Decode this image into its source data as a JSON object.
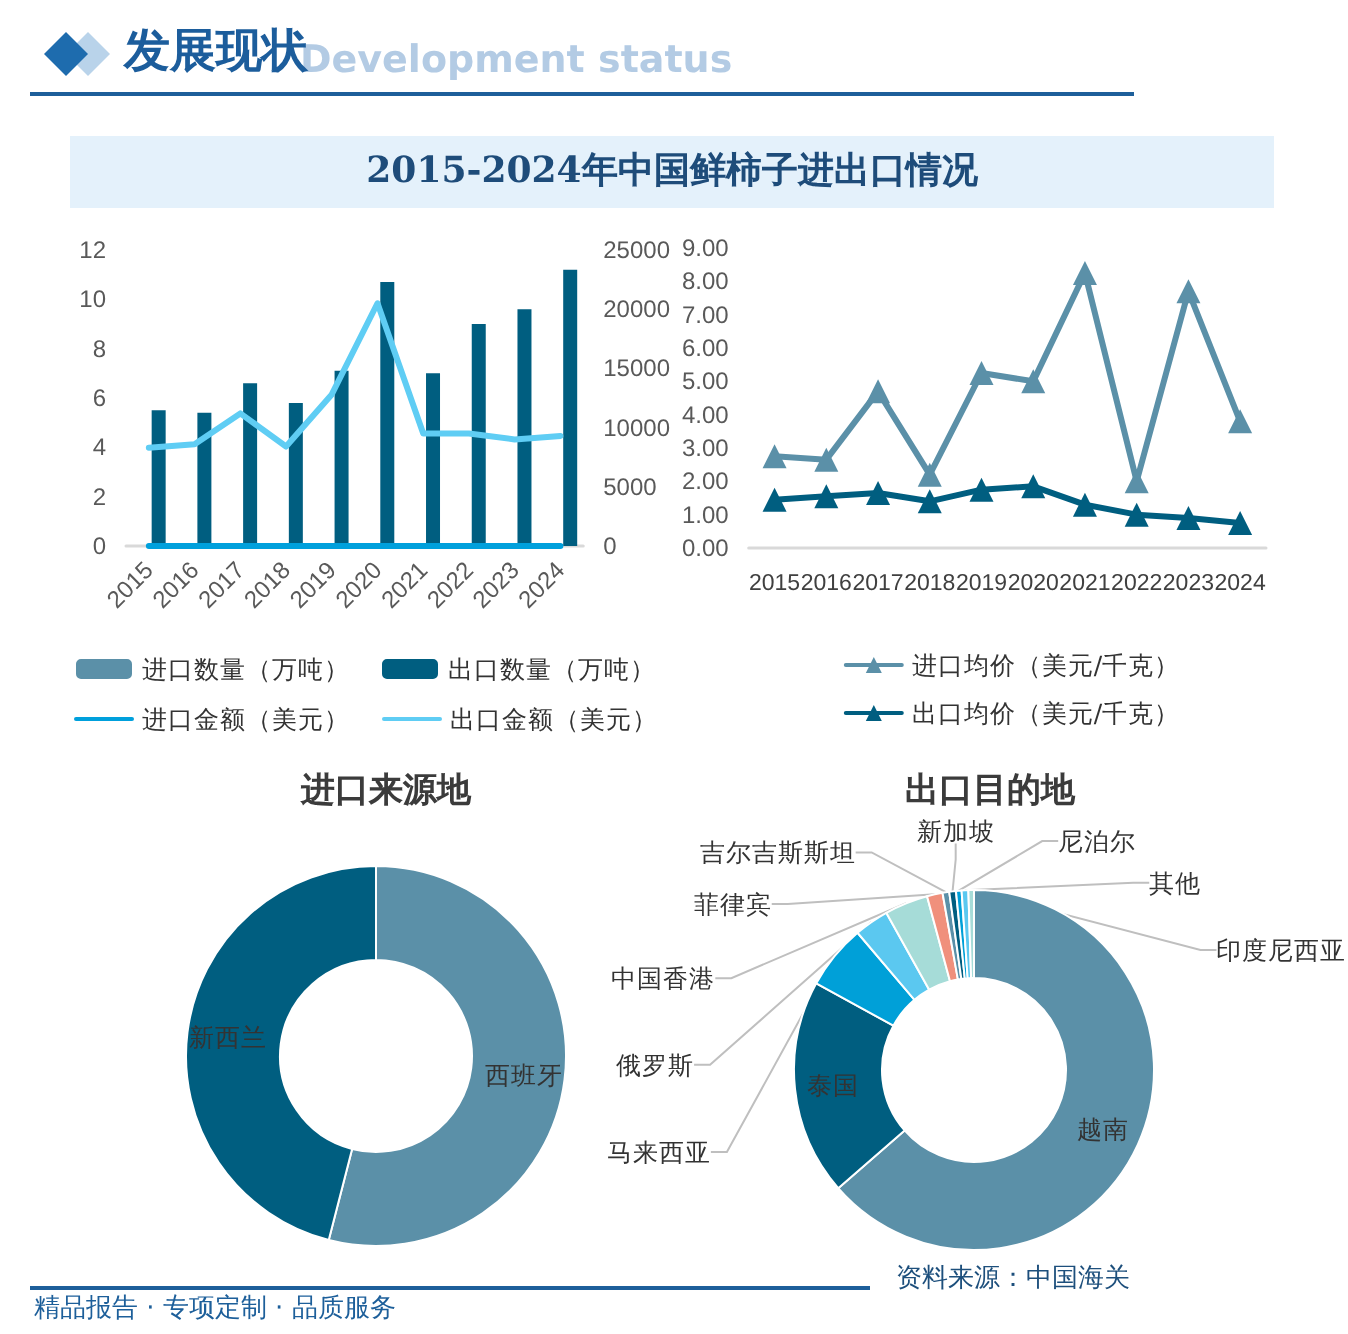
{
  "chart_data": [
    {
      "type": "other",
      "title": "发展现状",
      "subtitle": "2015-2024年中国鲜柿子进出口情况",
      "annotations": [
        "Development status",
        "精品报告 · 专项定制 · 品质服务",
        "资料来源：中国海关"
      ]
    },
    {
      "type": "bar",
      "categories": [
        "2015",
        "2016",
        "2017",
        "2018",
        "2019",
        "2020",
        "2021",
        "2022",
        "2023",
        "2024"
      ],
      "series": [
        {
          "name": "进口数量（万吨）",
          "type": "bar",
          "color": "#5b90a8",
          "values": [
            0,
            0,
            0,
            0,
            0,
            0,
            0,
            0,
            0,
            0
          ]
        },
        {
          "name": "出口数量（万吨）",
          "type": "bar",
          "color": "#005e80",
          "values": [
            5.5,
            5.4,
            6.6,
            5.8,
            7.1,
            10.7,
            7.0,
            9.0,
            9.6,
            11.2
          ]
        },
        {
          "name": "进口金额（美元）",
          "type": "line",
          "axis": "y2",
          "color": "#00a0dc",
          "values": [
            0,
            0,
            0,
            0,
            0,
            0,
            0,
            0,
            0,
            0
          ]
        },
        {
          "name": "出口金额（美元）",
          "type": "line",
          "axis": "y2",
          "color": "#5fcdf4",
          "values": [
            8300,
            8600,
            11200,
            8400,
            12800,
            20500,
            9500,
            9500,
            9000,
            9300
          ]
        }
      ],
      "ylim": [
        0,
        12
      ],
      "yticks": [
        0,
        2,
        4,
        6,
        8,
        10,
        12
      ],
      "y2lim": [
        0,
        25000
      ],
      "y2ticks": [
        0,
        5000,
        10000,
        15000,
        20000,
        25000
      ],
      "legend": "bottom"
    },
    {
      "type": "line",
      "categories": [
        "2015",
        "2016",
        "2017",
        "2018",
        "2019",
        "2020",
        "2021",
        "2022",
        "2023",
        "2024"
      ],
      "series": [
        {
          "name": "进口均价（美元/千克）",
          "color": "#5b90a8",
          "values": [
            2.75,
            2.65,
            4.7,
            2.2,
            5.25,
            5.0,
            8.25,
            2.0,
            7.7,
            3.8
          ]
        },
        {
          "name": "出口均价（美元/千克）",
          "color": "#005e80",
          "values": [
            1.45,
            1.55,
            1.65,
            1.4,
            1.75,
            1.85,
            1.3,
            1.0,
            0.9,
            0.75
          ]
        }
      ],
      "ylim": [
        0,
        9
      ],
      "yticks": [
        {
          "value": 0,
          "label": "0.00"
        },
        {
          "value": 1,
          "label": "1.00"
        },
        {
          "value": 2,
          "label": "2.00"
        },
        {
          "value": 3,
          "label": "3.00"
        },
        {
          "value": 4,
          "label": "4.00"
        },
        {
          "value": 5,
          "label": "5.00"
        },
        {
          "value": 6,
          "label": "6.00"
        },
        {
          "value": 7,
          "label": "7.00"
        },
        {
          "value": 8,
          "label": "8.00"
        },
        {
          "value": 9,
          "label": "9.00"
        }
      ],
      "marker": "triangle",
      "legend": "bottom"
    },
    {
      "type": "donut",
      "title": "进口来源地",
      "categories": [
        "西班牙",
        "新西兰"
      ],
      "values": [
        54,
        46
      ],
      "colors": [
        "#5b90a8",
        "#005e80"
      ]
    },
    {
      "type": "donut",
      "title": "出口目的地",
      "categories": [
        "越南",
        "泰国",
        "马来西亚",
        "俄罗斯",
        "中国香港",
        "菲律宾",
        "吉尔吉斯斯坦",
        "新加坡",
        "尼泊尔",
        "其他",
        "印度尼西亚"
      ],
      "values": [
        63.6,
        19.4,
        5.8,
        3.1,
        3.9,
        1.4,
        0.6,
        0.6,
        0.5,
        0.6,
        0.5
      ],
      "colors": [
        "#5b90a8",
        "#005e80",
        "#00a0d8",
        "#5bc8f0",
        "#a6dcd8",
        "#f0907c",
        "#5b90a8",
        "#005e80",
        "#00a0d8",
        "#5bc8f0",
        "#a6dcd8"
      ]
    }
  ]
}
